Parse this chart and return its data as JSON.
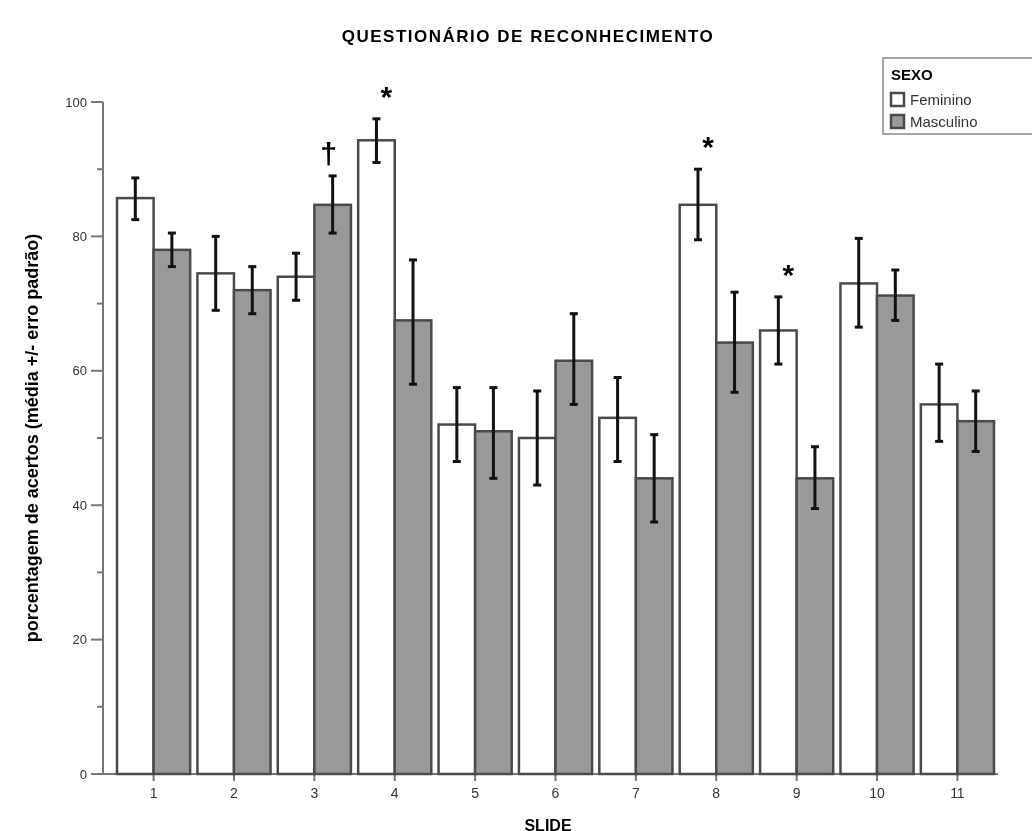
{
  "chart_data": {
    "type": "bar",
    "title": "QUESTIONÁRIO DE RECONHECIMENTO",
    "xlabel": "SLIDE",
    "ylabel": "porcentagem de acertos (média +/- erro padrão)",
    "legend_title": "SEXO",
    "legend": "top right",
    "grid": false,
    "categories": [
      "1",
      "2",
      "3",
      "4",
      "5",
      "6",
      "7",
      "8",
      "9",
      "10",
      "11"
    ],
    "series": [
      {
        "name": "Feminino",
        "color": "#ffffff",
        "values": [
          85.7,
          74.5,
          74,
          94.3,
          52,
          50,
          53,
          84.7,
          66,
          73,
          55
        ],
        "errors": [
          [
            82.5,
            88.7
          ],
          [
            69,
            80
          ],
          [
            70.5,
            77.5
          ],
          [
            91,
            97.5
          ],
          [
            46.5,
            57.5
          ],
          [
            43,
            57
          ],
          [
            46.5,
            59
          ],
          [
            79.5,
            90
          ],
          [
            61,
            71
          ],
          [
            66.5,
            79.7
          ],
          [
            49.5,
            61
          ]
        ]
      },
      {
        "name": "Masculino",
        "color": "#999999",
        "values": [
          78,
          72,
          84.7,
          67.5,
          51,
          61.5,
          44,
          64.2,
          44,
          71.2,
          52.5
        ],
        "errors": [
          [
            75.5,
            80.5
          ],
          [
            68.5,
            75.5
          ],
          [
            80.5,
            89
          ],
          [
            58,
            76.5
          ],
          [
            44,
            57.5
          ],
          [
            55,
            68.5
          ],
          [
            37.5,
            50.5
          ],
          [
            56.8,
            71.7
          ],
          [
            39.5,
            48.7
          ],
          [
            67.5,
            75
          ],
          [
            48,
            57
          ]
        ]
      }
    ],
    "ylim": [
      0,
      100
    ],
    "yticks": [
      0,
      {
        "value": 10,
        "label": null
      },
      20,
      {
        "value": 30,
        "label": null
      },
      40,
      {
        "value": 50,
        "label": null
      },
      60,
      {
        "value": 70,
        "label": null
      },
      80,
      {
        "value": 90,
        "label": null
      },
      100
    ],
    "annotations": [
      "†",
      "*",
      "*",
      "*"
    ]
  }
}
